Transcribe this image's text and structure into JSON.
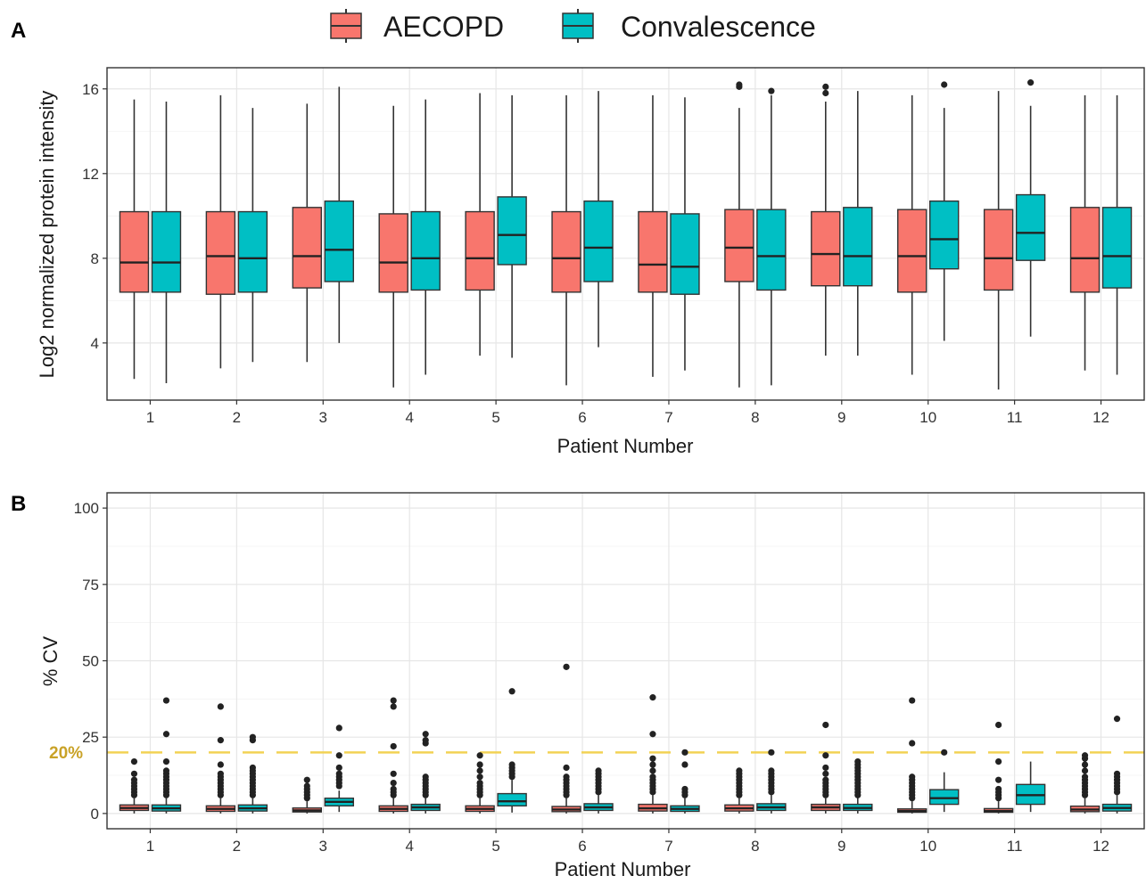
{
  "legend": {
    "entries": [
      {
        "label": "AECOPD",
        "color": "#F8766D"
      },
      {
        "label": "Convalescence",
        "color": "#00BFC4"
      }
    ]
  },
  "colors": {
    "aecopd": "#F8766D",
    "convalescence": "#00BFC4",
    "reference_line": "#F2D255",
    "reference_label": "#C9A227"
  },
  "chart_data": [
    {
      "panel": "A",
      "type": "boxplot",
      "xlabel": "Patient Number",
      "ylabel": "Log2 normalized protein intensity",
      "categories": [
        "1",
        "2",
        "3",
        "4",
        "5",
        "6",
        "7",
        "8",
        "9",
        "10",
        "11",
        "12"
      ],
      "ylim": [
        1.3,
        17.0
      ],
      "yticks": [
        4,
        8,
        12,
        16
      ],
      "grid": true,
      "legend_position": "top",
      "series": [
        {
          "name": "AECOPD",
          "color": "#F8766D",
          "boxes": [
            {
              "q1": 6.4,
              "median": 7.8,
              "q3": 10.2,
              "whisker_low": 2.3,
              "whisker_high": 15.5,
              "outliers": []
            },
            {
              "q1": 6.3,
              "median": 8.1,
              "q3": 10.2,
              "whisker_low": 2.8,
              "whisker_high": 15.7,
              "outliers": []
            },
            {
              "q1": 6.6,
              "median": 8.1,
              "q3": 10.4,
              "whisker_low": 3.1,
              "whisker_high": 15.3,
              "outliers": []
            },
            {
              "q1": 6.4,
              "median": 7.8,
              "q3": 10.1,
              "whisker_low": 1.9,
              "whisker_high": 15.2,
              "outliers": []
            },
            {
              "q1": 6.5,
              "median": 8.0,
              "q3": 10.2,
              "whisker_low": 3.4,
              "whisker_high": 15.8,
              "outliers": []
            },
            {
              "q1": 6.4,
              "median": 8.0,
              "q3": 10.2,
              "whisker_low": 2.0,
              "whisker_high": 15.7,
              "outliers": []
            },
            {
              "q1": 6.4,
              "median": 7.7,
              "q3": 10.2,
              "whisker_low": 2.4,
              "whisker_high": 15.7,
              "outliers": []
            },
            {
              "q1": 6.9,
              "median": 8.5,
              "q3": 10.3,
              "whisker_low": 1.9,
              "whisker_high": 15.1,
              "outliers": [
                16.1,
                16.2
              ]
            },
            {
              "q1": 6.7,
              "median": 8.2,
              "q3": 10.2,
              "whisker_low": 3.4,
              "whisker_high": 15.4,
              "outliers": [
                15.8,
                16.1
              ]
            },
            {
              "q1": 6.4,
              "median": 8.1,
              "q3": 10.3,
              "whisker_low": 2.5,
              "whisker_high": 15.7,
              "outliers": []
            },
            {
              "q1": 6.5,
              "median": 8.0,
              "q3": 10.3,
              "whisker_low": 1.8,
              "whisker_high": 15.9,
              "outliers": []
            },
            {
              "q1": 6.4,
              "median": 8.0,
              "q3": 10.4,
              "whisker_low": 2.7,
              "whisker_high": 15.7,
              "outliers": []
            }
          ]
        },
        {
          "name": "Convalescence",
          "color": "#00BFC4",
          "boxes": [
            {
              "q1": 6.4,
              "median": 7.8,
              "q3": 10.2,
              "whisker_low": 2.1,
              "whisker_high": 15.4,
              "outliers": []
            },
            {
              "q1": 6.4,
              "median": 8.0,
              "q3": 10.2,
              "whisker_low": 3.1,
              "whisker_high": 15.1,
              "outliers": []
            },
            {
              "q1": 6.9,
              "median": 8.4,
              "q3": 10.7,
              "whisker_low": 4.0,
              "whisker_high": 16.1,
              "outliers": []
            },
            {
              "q1": 6.5,
              "median": 8.0,
              "q3": 10.2,
              "whisker_low": 2.5,
              "whisker_high": 15.5,
              "outliers": []
            },
            {
              "q1": 7.7,
              "median": 9.1,
              "q3": 10.9,
              "whisker_low": 3.3,
              "whisker_high": 15.7,
              "outliers": []
            },
            {
              "q1": 6.9,
              "median": 8.5,
              "q3": 10.7,
              "whisker_low": 3.8,
              "whisker_high": 15.9,
              "outliers": []
            },
            {
              "q1": 6.3,
              "median": 7.6,
              "q3": 10.1,
              "whisker_low": 2.7,
              "whisker_high": 15.6,
              "outliers": []
            },
            {
              "q1": 6.5,
              "median": 8.1,
              "q3": 10.3,
              "whisker_low": 2.0,
              "whisker_high": 15.7,
              "outliers": [
                15.9
              ]
            },
            {
              "q1": 6.7,
              "median": 8.1,
              "q3": 10.4,
              "whisker_low": 3.4,
              "whisker_high": 15.9,
              "outliers": []
            },
            {
              "q1": 7.5,
              "median": 8.9,
              "q3": 10.7,
              "whisker_low": 4.1,
              "whisker_high": 15.1,
              "outliers": [
                16.2
              ]
            },
            {
              "q1": 7.9,
              "median": 9.2,
              "q3": 11.0,
              "whisker_low": 4.3,
              "whisker_high": 15.2,
              "outliers": [
                16.3
              ]
            },
            {
              "q1": 6.6,
              "median": 8.1,
              "q3": 10.4,
              "whisker_low": 2.5,
              "whisker_high": 15.7,
              "outliers": []
            }
          ]
        }
      ]
    },
    {
      "panel": "B",
      "type": "boxplot",
      "xlabel": "Patient Number",
      "ylabel": "% CV",
      "categories": [
        "1",
        "2",
        "3",
        "4",
        "5",
        "6",
        "7",
        "8",
        "9",
        "10",
        "11",
        "12"
      ],
      "ylim": [
        -5,
        105
      ],
      "yticks": [
        0,
        25,
        50,
        75,
        100
      ],
      "grid": true,
      "reference_line": {
        "y": 20,
        "label": "20%",
        "style": "dashed"
      },
      "series": [
        {
          "name": "AECOPD",
          "color": "#F8766D",
          "boxes": [
            {
              "q1": 1.0,
              "median": 1.8,
              "q3": 2.8,
              "whisker_low": 0.0,
              "whisker_high": 5.0,
              "outliers": [
                6,
                7,
                8,
                9,
                10,
                11,
                13,
                17
              ]
            },
            {
              "q1": 0.7,
              "median": 1.5,
              "q3": 2.5,
              "whisker_low": 0.0,
              "whisker_high": 5.0,
              "outliers": [
                6,
                7,
                8,
                9,
                10,
                11,
                12,
                13,
                16,
                24,
                35
              ]
            },
            {
              "q1": 0.5,
              "median": 1.0,
              "q3": 1.8,
              "whisker_low": 0.0,
              "whisker_high": 4.0,
              "outliers": [
                5,
                6,
                7,
                8,
                9,
                11
              ]
            },
            {
              "q1": 0.7,
              "median": 1.5,
              "q3": 2.5,
              "whisker_low": 0.0,
              "whisker_high": 5.0,
              "outliers": [
                6,
                7,
                8,
                10,
                13,
                22,
                35,
                37
              ]
            },
            {
              "q1": 0.7,
              "median": 1.5,
              "q3": 2.5,
              "whisker_low": 0.0,
              "whisker_high": 5.0,
              "outliers": [
                6,
                7,
                8,
                9,
                10,
                12,
                14,
                16,
                19
              ]
            },
            {
              "q1": 0.6,
              "median": 1.3,
              "q3": 2.3,
              "whisker_low": 0.0,
              "whisker_high": 5.0,
              "outliers": [
                6,
                7,
                8,
                9,
                10,
                11,
                12,
                15,
                48
              ]
            },
            {
              "q1": 0.8,
              "median": 1.7,
              "q3": 3.0,
              "whisker_low": 0.0,
              "whisker_high": 6.0,
              "outliers": [
                7,
                8,
                9,
                10,
                11,
                12,
                14,
                16,
                18,
                26,
                38
              ]
            },
            {
              "q1": 0.8,
              "median": 1.7,
              "q3": 2.8,
              "whisker_low": 0.0,
              "whisker_high": 5.0,
              "outliers": [
                6,
                7,
                8,
                9,
                10,
                11,
                12,
                13,
                14
              ]
            },
            {
              "q1": 1.0,
              "median": 2.0,
              "q3": 3.0,
              "whisker_low": 0.0,
              "whisker_high": 5.0,
              "outliers": [
                6,
                7,
                8,
                9,
                10,
                11,
                13,
                15,
                19,
                29
              ]
            },
            {
              "q1": 0.4,
              "median": 0.8,
              "q3": 1.5,
              "whisker_low": 0.0,
              "whisker_high": 4.0,
              "outliers": [
                5,
                6,
                7,
                8,
                9,
                10,
                11,
                12,
                23,
                37
              ]
            },
            {
              "q1": 0.4,
              "median": 0.8,
              "q3": 1.6,
              "whisker_low": 0.0,
              "whisker_high": 4.0,
              "outliers": [
                5,
                6,
                7,
                8,
                11,
                17,
                29
              ]
            },
            {
              "q1": 0.6,
              "median": 1.3,
              "q3": 2.4,
              "whisker_low": 0.0,
              "whisker_high": 5.0,
              "outliers": [
                6,
                7,
                8,
                9,
                10,
                11,
                12,
                14,
                16,
                18,
                19
              ]
            }
          ]
        },
        {
          "name": "Convalescence",
          "color": "#00BFC4",
          "boxes": [
            {
              "q1": 0.8,
              "median": 1.7,
              "q3": 2.8,
              "whisker_low": 0.0,
              "whisker_high": 5.0,
              "outliers": [
                6,
                7,
                8,
                9,
                10,
                11,
                12,
                13,
                14,
                17,
                26,
                37
              ]
            },
            {
              "q1": 0.8,
              "median": 1.7,
              "q3": 2.8,
              "whisker_low": 0.0,
              "whisker_high": 5.0,
              "outliers": [
                6,
                7,
                8,
                9,
                10,
                11,
                12,
                13,
                14,
                15,
                24,
                25
              ]
            },
            {
              "q1": 2.5,
              "median": 3.8,
              "q3": 5.0,
              "whisker_low": 0.5,
              "whisker_high": 7.5,
              "outliers": [
                9,
                10,
                11,
                12,
                13,
                15,
                19,
                28
              ]
            },
            {
              "q1": 1.0,
              "median": 2.0,
              "q3": 3.0,
              "whisker_low": 0.0,
              "whisker_high": 5.0,
              "outliers": [
                6,
                7,
                8,
                9,
                10,
                11,
                12,
                23,
                24,
                26
              ]
            },
            {
              "q1": 2.5,
              "median": 4.0,
              "q3": 6.5,
              "whisker_low": 0.3,
              "whisker_high": 11.0,
              "outliers": [
                12,
                13,
                14,
                15,
                16,
                40
              ]
            },
            {
              "q1": 1.0,
              "median": 2.0,
              "q3": 3.2,
              "whisker_low": 0.0,
              "whisker_high": 6.0,
              "outliers": [
                7,
                8,
                9,
                10,
                11,
                12,
                13,
                14
              ]
            },
            {
              "q1": 0.7,
              "median": 1.5,
              "q3": 2.5,
              "whisker_low": 0.0,
              "whisker_high": 5.0,
              "outliers": [
                6,
                7,
                8,
                16,
                20
              ]
            },
            {
              "q1": 1.0,
              "median": 2.0,
              "q3": 3.2,
              "whisker_low": 0.0,
              "whisker_high": 6.0,
              "outliers": [
                7,
                8,
                9,
                10,
                11,
                12,
                13,
                14,
                20
              ]
            },
            {
              "q1": 1.0,
              "median": 1.8,
              "q3": 3.0,
              "whisker_low": 0.0,
              "whisker_high": 5.5,
              "outliers": [
                6,
                7,
                8,
                9,
                10,
                11,
                12,
                13,
                14,
                15,
                16,
                17
              ]
            },
            {
              "q1": 3.0,
              "median": 5.0,
              "q3": 7.8,
              "whisker_low": 0.5,
              "whisker_high": 13.5,
              "outliers": [
                20
              ]
            },
            {
              "q1": 3.0,
              "median": 6.0,
              "q3": 9.5,
              "whisker_low": 0.5,
              "whisker_high": 17.0,
              "outliers": []
            },
            {
              "q1": 0.8,
              "median": 1.8,
              "q3": 3.0,
              "whisker_low": 0.0,
              "whisker_high": 6.0,
              "outliers": [
                7,
                8,
                9,
                10,
                11,
                12,
                13,
                31
              ]
            }
          ]
        }
      ]
    }
  ]
}
